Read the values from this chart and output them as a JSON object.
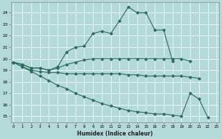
{
  "xlabel": "Humidex (Indice chaleur)",
  "bg_color": "#b3d9d9",
  "grid_color": "#e8f5f5",
  "line_color": "#2e6b5e",
  "lines": [
    {
      "x": [
        0,
        1,
        2,
        3,
        4,
        5,
        6,
        7,
        8,
        9,
        10,
        11,
        12,
        13,
        14,
        15,
        16,
        17,
        18
      ],
      "y": [
        19.7,
        19.5,
        19.2,
        19.2,
        19.0,
        19.3,
        20.6,
        21.0,
        21.1,
        22.2,
        22.4,
        22.2,
        23.3,
        24.5,
        24.0,
        24.0,
        22.5,
        22.5,
        19.8
      ]
    },
    {
      "x": [
        0,
        1,
        2,
        3,
        4,
        5,
        6,
        7,
        8,
        9,
        10,
        11,
        12,
        13,
        14,
        15,
        16,
        17,
        18,
        19,
        20
      ],
      "y": [
        19.7,
        19.5,
        19.2,
        19.2,
        19.0,
        19.2,
        19.5,
        19.7,
        19.9,
        20.0,
        20.0,
        20.0,
        20.0,
        20.0,
        20.0,
        20.0,
        20.0,
        20.0,
        20.0,
        20.0,
        19.8
      ]
    },
    {
      "x": [
        0,
        1,
        2,
        3,
        4,
        5,
        6,
        7,
        8,
        9,
        10,
        11,
        12,
        13,
        14,
        15,
        16,
        17,
        18,
        19,
        20,
        21
      ],
      "y": [
        19.7,
        19.3,
        19.0,
        18.9,
        18.8,
        18.8,
        18.7,
        18.7,
        18.7,
        18.7,
        18.7,
        18.7,
        18.7,
        18.6,
        18.6,
        18.5,
        18.5,
        18.5,
        18.5,
        18.5,
        18.4,
        18.3
      ]
    },
    {
      "x": [
        0,
        1,
        2,
        3,
        4,
        5,
        6,
        7,
        8,
        9,
        10,
        11,
        12,
        13,
        14,
        15,
        16,
        17,
        18,
        19,
        20,
        21,
        22
      ],
      "y": [
        19.7,
        19.3,
        18.9,
        18.5,
        18.1,
        17.7,
        17.4,
        17.0,
        16.7,
        16.4,
        16.1,
        15.9,
        15.7,
        15.5,
        15.4,
        15.3,
        15.2,
        15.2,
        15.1,
        15.0,
        17.0,
        16.5,
        14.9
      ]
    }
  ],
  "xlim": [
    -0.3,
    23.3
  ],
  "ylim": [
    14.5,
    24.9
  ],
  "yticks": [
    15,
    16,
    17,
    18,
    19,
    20,
    21,
    22,
    23,
    24
  ],
  "xticks": [
    0,
    1,
    2,
    3,
    4,
    5,
    6,
    7,
    8,
    9,
    10,
    11,
    12,
    13,
    14,
    15,
    16,
    17,
    18,
    19,
    20,
    21,
    22,
    23
  ]
}
